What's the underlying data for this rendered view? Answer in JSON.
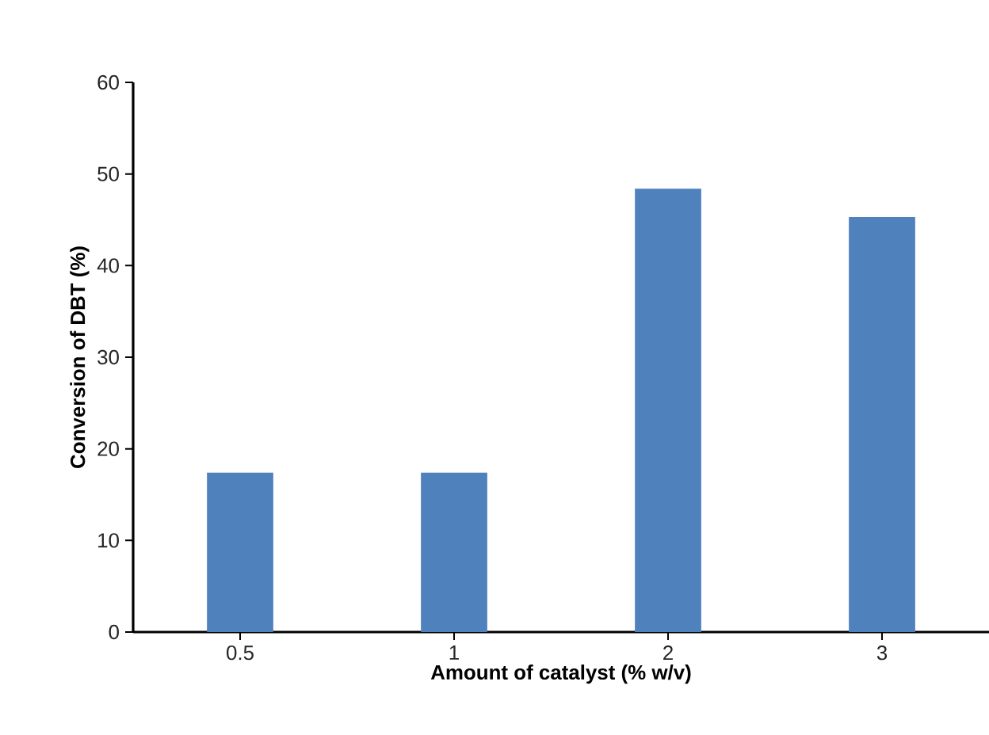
{
  "chart_data": {
    "type": "bar",
    "xlabel": "Amount of catalyst (% w/v)",
    "ylabel": "Conversion of DBT (%)",
    "categories": [
      "0.5",
      "1",
      "2",
      "3"
    ],
    "values": [
      17.4,
      17.4,
      48.4,
      45.3
    ],
    "color": "#4f81bd",
    "ylim": [
      0,
      60
    ],
    "yticks": [
      0,
      10,
      20,
      30,
      40,
      50,
      60
    ],
    "grid": false
  }
}
